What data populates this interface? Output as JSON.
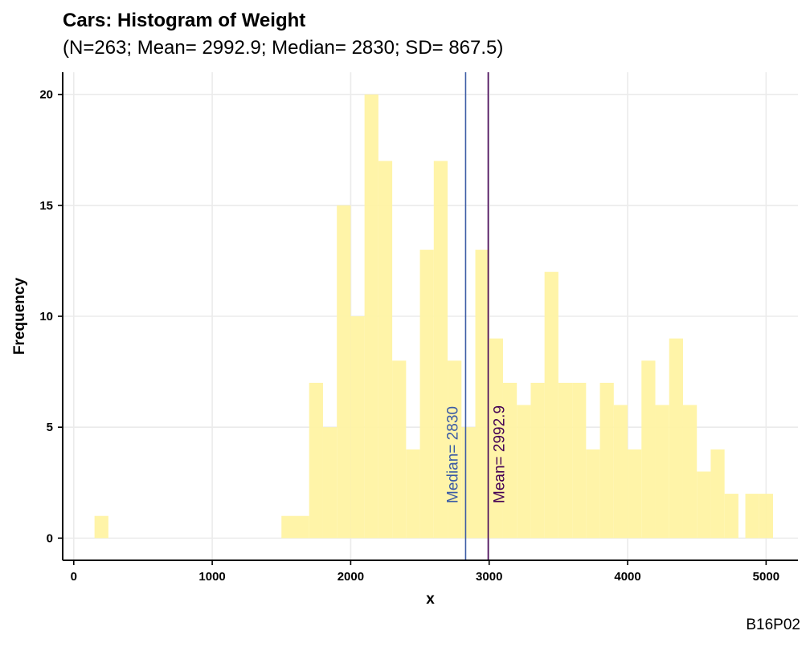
{
  "title": "Cars: Histogram of Weight",
  "subtitle": "(N=263; Mean= 2992.9; Median= 2830; SD= 867.5)",
  "caption": "B16P02",
  "colors": {
    "bar_fill": "#FFF3A3",
    "median_line": "#3B5BA5",
    "mean_line": "#440154",
    "grid": "#EBEBEB",
    "axis": "#000000"
  },
  "chart_data": {
    "type": "bar",
    "title": "Cars: Histogram of Weight",
    "subtitle": "(N=263; Mean= 2992.9; Median= 2830; SD= 867.5)",
    "xlabel": "x",
    "ylabel": "Frequency",
    "xlim": [
      -80,
      5230
    ],
    "ylim": [
      -1,
      21
    ],
    "x_ticks": [
      0,
      1000,
      2000,
      3000,
      4000,
      5000
    ],
    "y_ticks": [
      0,
      5,
      10,
      15,
      20
    ],
    "grid": true,
    "bin_width": 100,
    "bins": [
      {
        "x0": 150,
        "x1": 250,
        "count": 1
      },
      {
        "x0": 1500,
        "x1": 1600,
        "count": 1
      },
      {
        "x0": 1600,
        "x1": 1700,
        "count": 1
      },
      {
        "x0": 1700,
        "x1": 1800,
        "count": 7
      },
      {
        "x0": 1800,
        "x1": 1900,
        "count": 5
      },
      {
        "x0": 1900,
        "x1": 2000,
        "count": 15
      },
      {
        "x0": 2000,
        "x1": 2100,
        "count": 10
      },
      {
        "x0": 2100,
        "x1": 2200,
        "count": 20
      },
      {
        "x0": 2200,
        "x1": 2300,
        "count": 17
      },
      {
        "x0": 2300,
        "x1": 2400,
        "count": 8
      },
      {
        "x0": 2400,
        "x1": 2500,
        "count": 4
      },
      {
        "x0": 2500,
        "x1": 2600,
        "count": 13
      },
      {
        "x0": 2600,
        "x1": 2700,
        "count": 17
      },
      {
        "x0": 2700,
        "x1": 2800,
        "count": 8
      },
      {
        "x0": 2800,
        "x1": 2900,
        "count": 5
      },
      {
        "x0": 2900,
        "x1": 3000,
        "count": 13
      },
      {
        "x0": 3000,
        "x1": 3100,
        "count": 9
      },
      {
        "x0": 3100,
        "x1": 3200,
        "count": 7
      },
      {
        "x0": 3200,
        "x1": 3300,
        "count": 6
      },
      {
        "x0": 3300,
        "x1": 3400,
        "count": 7
      },
      {
        "x0": 3400,
        "x1": 3500,
        "count": 12
      },
      {
        "x0": 3500,
        "x1": 3600,
        "count": 7
      },
      {
        "x0": 3600,
        "x1": 3700,
        "count": 7
      },
      {
        "x0": 3700,
        "x1": 3800,
        "count": 4
      },
      {
        "x0": 3800,
        "x1": 3900,
        "count": 7
      },
      {
        "x0": 3900,
        "x1": 4000,
        "count": 6
      },
      {
        "x0": 4000,
        "x1": 4100,
        "count": 4
      },
      {
        "x0": 4100,
        "x1": 4200,
        "count": 8
      },
      {
        "x0": 4200,
        "x1": 4300,
        "count": 6
      },
      {
        "x0": 4300,
        "x1": 4400,
        "count": 9
      },
      {
        "x0": 4400,
        "x1": 4500,
        "count": 6
      },
      {
        "x0": 4500,
        "x1": 4600,
        "count": 3
      },
      {
        "x0": 4600,
        "x1": 4700,
        "count": 4
      },
      {
        "x0": 4700,
        "x1": 4800,
        "count": 2
      },
      {
        "x0": 4850,
        "x1": 4950,
        "count": 2
      },
      {
        "x0": 4950,
        "x1": 5050,
        "count": 2
      }
    ],
    "reference_lines": [
      {
        "name": "median",
        "value": 2830,
        "label": "Median= 2830"
      },
      {
        "name": "mean",
        "value": 2992.9,
        "label": "Mean= 2992.9"
      }
    ]
  }
}
